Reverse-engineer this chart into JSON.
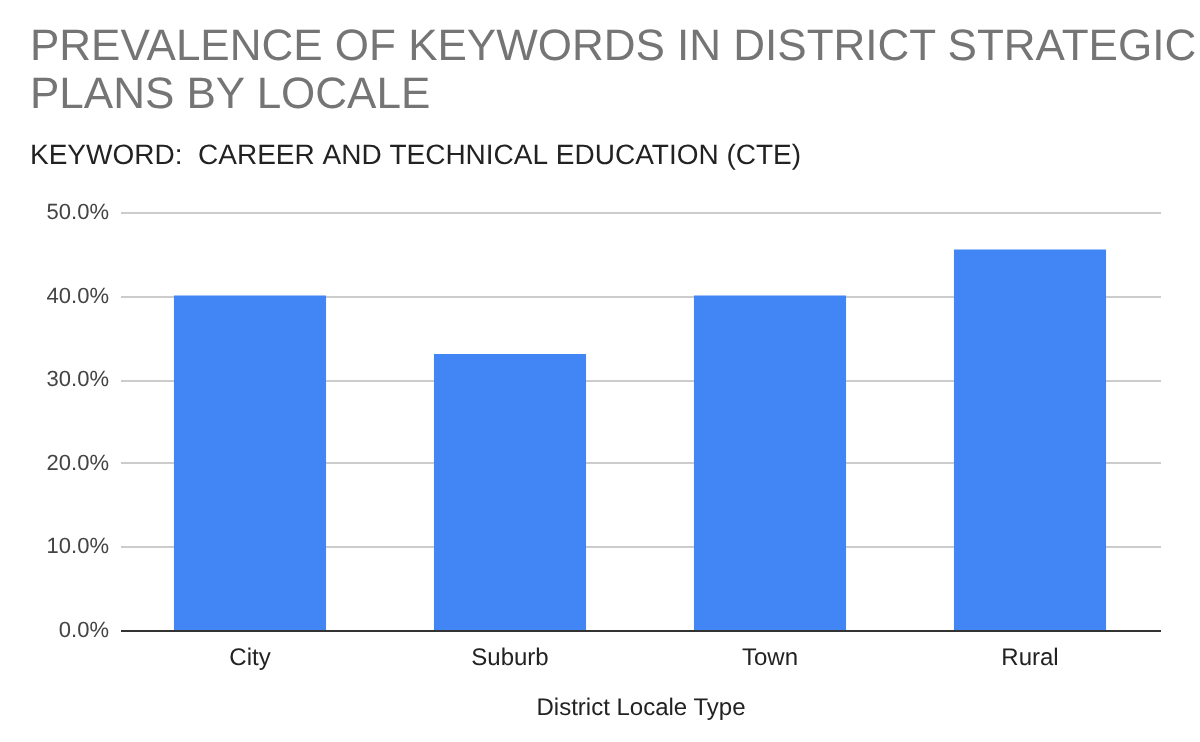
{
  "chart_data": {
    "type": "bar",
    "title": "PREVALENCE OF KEYWORDS IN DISTRICT STRATEGIC PLANS BY LOCALE",
    "subtitle": "KEYWORD:  CAREER AND TECHNICAL EDUCATION (CTE)",
    "xlabel": "District Locale Type",
    "categories": [
      "City",
      "Suburb",
      "Town",
      "Rural"
    ],
    "values": [
      40.0,
      33.0,
      40.0,
      45.5
    ],
    "color": "#4285f4",
    "ylim": [
      0,
      50
    ],
    "yticks": [
      {
        "value": 0,
        "label": "0.0%"
      },
      {
        "value": 10,
        "label": "10.0%"
      },
      {
        "value": 20,
        "label": "20.0%"
      },
      {
        "value": 30,
        "label": "30.0%"
      },
      {
        "value": 40,
        "label": "40.0%"
      },
      {
        "value": 50,
        "label": "50.0%"
      }
    ],
    "grid": "y"
  }
}
